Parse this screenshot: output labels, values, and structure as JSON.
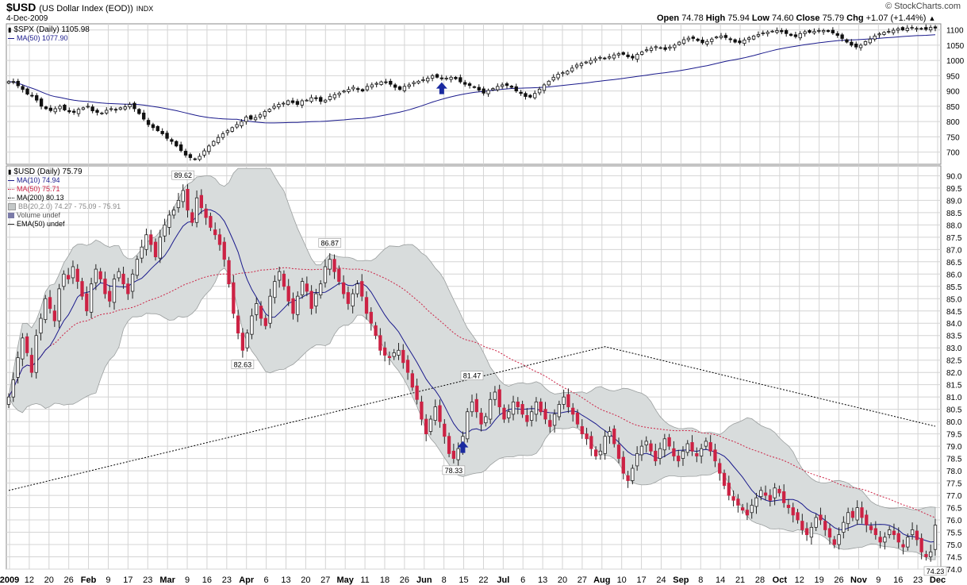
{
  "header": {
    "symbol": "$USD",
    "name": "(US Dollar Index (EOD))",
    "exchange": "INDX",
    "date": "4-Dec-2009",
    "brand": "© StockCharts.com",
    "open_label": "Open",
    "open": "74.78",
    "high_label": "High",
    "high": "75.94",
    "low_label": "Low",
    "low": "74.60",
    "close_label": "Close",
    "close": "75.79",
    "chg_label": "Chg",
    "chg": "+1.07 (+1.44%)",
    "up_arrow": "▲"
  },
  "upper_panel": {
    "legend_title": "$SPX (Daily) 1105.98",
    "legend_ma": "MA(50) 1077.90"
  },
  "lower_panel": {
    "legend_title": "$USD (Daily) 75.79",
    "legend_ma10": "MA(10) 74.94",
    "legend_ma50": "MA(50) 75.71",
    "legend_ma200": "MA(200) 80.13",
    "legend_bb": "BB(20,2.0) 74.27 - 75.09 - 75.91",
    "legend_volume": "Volume undef",
    "legend_ema": "EMA(50) undef"
  },
  "colors": {
    "up_candle": "#ffffff",
    "down_candle": "#cc2244",
    "ma_blue": "#1a1a8c",
    "ma_red": "#cc2244",
    "ma_black": "#000000",
    "band_fill": "#d8dcdc",
    "grid": "#d4d4d4",
    "arrow": "#1a2aa0"
  },
  "chart_data": [
    {
      "type": "candlestick",
      "title": "$SPX (Daily) 1105.98",
      "ylim": [
        660,
        1120
      ],
      "yticks": [
        700,
        750,
        800,
        850,
        900,
        950,
        1000,
        1050,
        1100
      ],
      "closes": [
        931,
        928,
        917,
        905,
        890,
        885,
        870,
        850,
        842,
        836,
        842,
        850,
        838,
        832,
        830,
        840,
        845,
        850,
        835,
        830,
        828,
        837,
        842,
        838,
        845,
        848,
        856,
        842,
        826,
        808,
        790,
        780,
        770,
        760,
        745,
        735,
        720,
        705,
        690,
        682,
        676,
        686,
        704,
        720,
        735,
        748,
        760,
        770,
        780,
        790,
        800,
        815,
        808,
        813,
        822,
        833,
        840,
        850,
        856,
        860,
        868,
        862,
        856,
        868,
        870,
        878,
        875,
        866,
        870,
        882,
        888,
        893,
        900,
        905,
        912,
        905,
        900,
        915,
        920,
        925,
        930,
        928,
        922,
        912,
        905,
        915,
        920,
        928,
        932,
        937,
        942,
        950,
        945,
        940,
        942,
        945,
        940,
        930,
        922,
        918,
        912,
        903,
        893,
        902,
        908,
        915,
        920,
        918,
        912,
        900,
        892,
        882,
        880,
        892,
        906,
        920,
        932,
        945,
        955,
        960,
        965,
        975,
        985,
        990,
        995,
        1000,
        1005,
        1010,
        1006,
        1012,
        1018,
        1022,
        1020,
        1012,
        1008,
        1020,
        1028,
        1035,
        1040,
        1045,
        1042,
        1036,
        1044,
        1050,
        1060,
        1068,
        1073,
        1072,
        1065,
        1058,
        1062,
        1070,
        1077,
        1080,
        1075,
        1068,
        1060,
        1058,
        1067,
        1074,
        1080,
        1085,
        1090,
        1093,
        1096,
        1098,
        1094,
        1088,
        1082,
        1078,
        1088,
        1094,
        1092,
        1095,
        1098,
        1098,
        1095,
        1090,
        1082,
        1072,
        1060,
        1050,
        1044,
        1050,
        1062,
        1070,
        1080,
        1087,
        1092,
        1095,
        1099,
        1104,
        1100,
        1106,
        1108,
        1105,
        1104,
        1102,
        1108,
        1106
      ],
      "ma50_text": "MA(50) 1077.90",
      "annotations": [
        "up-arrow"
      ]
    },
    {
      "type": "candlestick",
      "title": "$USD (Daily) 75.79",
      "ylim": [
        74.0,
        90.4
      ],
      "yticks": [
        74.0,
        74.5,
        75.0,
        75.5,
        76.0,
        76.5,
        77.0,
        77.5,
        78.0,
        78.5,
        79.0,
        79.5,
        80.0,
        80.5,
        81.0,
        81.5,
        82.0,
        82.5,
        83.0,
        83.5,
        84.0,
        84.5,
        85.0,
        85.5,
        86.0,
        86.5,
        87.0,
        87.5,
        88.0,
        88.5,
        89.0,
        89.5,
        90.0
      ],
      "closes": [
        81.0,
        81.7,
        82.6,
        83.4,
        82.8,
        82.0,
        83.5,
        84.2,
        85.0,
        84.6,
        84.1,
        85.4,
        86.0,
        85.8,
        86.3,
        85.7,
        85.1,
        84.5,
        85.6,
        86.2,
        85.8,
        85.2,
        84.9,
        85.8,
        86.1,
        85.6,
        85.2,
        86.0,
        86.6,
        87.1,
        87.6,
        87.2,
        86.7,
        87.5,
        88.0,
        88.4,
        88.6,
        89.0,
        89.4,
        88.6,
        88.1,
        89.1,
        88.7,
        88.3,
        87.9,
        87.6,
        87.2,
        86.6,
        85.6,
        84.4,
        83.6,
        82.9,
        83.6,
        84.3,
        84.8,
        84.2,
        83.9,
        85.1,
        85.7,
        86.1,
        85.5,
        84.9,
        84.4,
        85.1,
        85.7,
        85.3,
        84.6,
        85.2,
        85.6,
        86.3,
        86.6,
        86.1,
        85.7,
        85.2,
        84.8,
        85.2,
        85.6,
        85.1,
        84.4,
        84.0,
        83.5,
        82.9,
        82.7,
        82.6,
        82.8,
        82.9,
        82.4,
        82.0,
        81.4,
        80.9,
        80.1,
        79.5,
        80.1,
        80.6,
        80.0,
        79.4,
        78.7,
        78.5,
        78.9,
        79.4,
        80.4,
        80.8,
        80.4,
        79.9,
        80.2,
        80.9,
        81.2,
        80.6,
        80.1,
        80.4,
        80.8,
        80.6,
        80.3,
        80.0,
        80.4,
        80.8,
        80.4,
        80.1,
        79.8,
        80.3,
        80.7,
        81.0,
        80.6,
        80.3,
        79.9,
        79.5,
        79.3,
        78.9,
        78.6,
        78.8,
        79.4,
        79.6,
        79.1,
        78.5,
        77.9,
        77.6,
        78.1,
        78.7,
        79.0,
        79.2,
        78.8,
        78.4,
        78.9,
        79.3,
        79.0,
        78.6,
        78.4,
        78.8,
        79.1,
        78.8,
        78.6,
        78.9,
        79.2,
        78.8,
        78.4,
        77.9,
        77.4,
        77.0,
        76.8,
        76.6,
        76.4,
        76.2,
        76.6,
        76.9,
        77.2,
        77.0,
        76.8,
        77.3,
        77.1,
        76.7,
        76.5,
        76.2,
        76.0,
        75.6,
        75.4,
        75.7,
        76.1,
        76.0,
        75.6,
        75.3,
        75.0,
        75.4,
        75.9,
        76.3,
        76.1,
        76.5,
        76.1,
        75.8,
        75.6,
        75.4,
        75.1,
        75.3,
        75.6,
        75.4,
        75.1,
        74.9,
        75.3,
        75.6,
        75.2,
        74.7,
        74.5,
        74.7,
        75.79
      ],
      "ma200_text": "MA(200) 80.13",
      "price_labels": [
        "89.62",
        "82.63",
        "86.87",
        "81.47",
        "78.33",
        "74.23"
      ],
      "annotations": [
        "up-arrow"
      ]
    }
  ],
  "x_axis": {
    "labels": [
      "2009",
      "12",
      "20",
      "26",
      "Feb",
      "9",
      "17",
      "23",
      "Mar",
      "9",
      "16",
      "23",
      "Apr",
      "6",
      "13",
      "20",
      "27",
      "May",
      "11",
      "18",
      "26",
      "Jun",
      "8",
      "15",
      "22",
      "Jul",
      "6",
      "13",
      "20",
      "27",
      "Aug",
      "10",
      "17",
      "24",
      "Sep",
      "8",
      "14",
      "21",
      "28",
      "Oct",
      "12",
      "19",
      "26",
      "Nov",
      "9",
      "16",
      "23",
      "Dec"
    ],
    "bold": [
      "2009",
      "Feb",
      "Mar",
      "Apr",
      "May",
      "Jun",
      "Jul",
      "Aug",
      "Sep",
      "Oct",
      "Nov",
      "Dec"
    ]
  }
}
